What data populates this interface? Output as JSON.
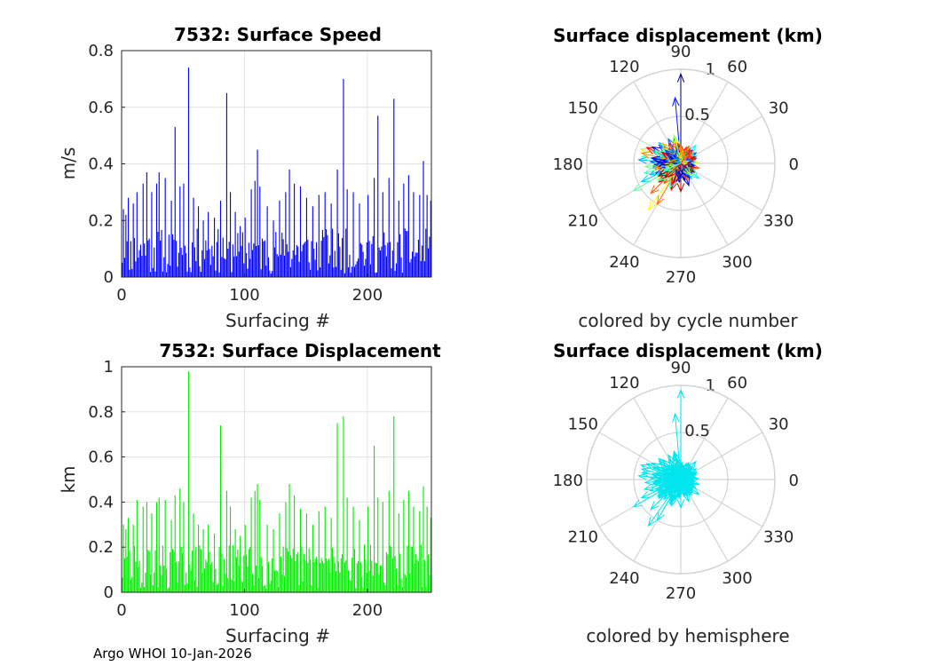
{
  "footer": "Argo WHOI 10-Jan-2026",
  "chart_data": [
    {
      "id": "speed",
      "type": "bar",
      "title": "7532: Surface Speed",
      "xlabel": "Surfacing #",
      "ylabel": "m/s",
      "xlim": [
        0,
        252
      ],
      "ylim": [
        0,
        0.8
      ],
      "xticks": [
        0,
        100,
        200
      ],
      "yticks": [
        0,
        0.2,
        0.4,
        0.6,
        0.8
      ],
      "xtick_labels": [
        "0",
        "100",
        "200"
      ],
      "ytick_labels": [
        "0",
        "0.2",
        "0.4",
        "0.6",
        "0.8"
      ],
      "color": "#0000ff",
      "grid": true,
      "n": 252,
      "peaks": [
        [
          1,
          0.24
        ],
        [
          3,
          0.22
        ],
        [
          5,
          0.28
        ],
        [
          9,
          0.26
        ],
        [
          12,
          0.3
        ],
        [
          17,
          0.33
        ],
        [
          20,
          0.37
        ],
        [
          24,
          0.3
        ],
        [
          28,
          0.33
        ],
        [
          30,
          0.37
        ],
        [
          35,
          0.35
        ],
        [
          40,
          0.27
        ],
        [
          43,
          0.53
        ],
        [
          47,
          0.32
        ],
        [
          50,
          0.33
        ],
        [
          54,
          0.74
        ],
        [
          58,
          0.28
        ],
        [
          62,
          0.25
        ],
        [
          66,
          0.2
        ],
        [
          70,
          0.23
        ],
        [
          75,
          0.21
        ],
        [
          80,
          0.27
        ],
        [
          85,
          0.65
        ],
        [
          88,
          0.3
        ],
        [
          92,
          0.23
        ],
        [
          96,
          0.18
        ],
        [
          100,
          0.21
        ],
        [
          105,
          0.31
        ],
        [
          108,
          0.34
        ],
        [
          110,
          0.45
        ],
        [
          112,
          0.32
        ],
        [
          118,
          0.25
        ],
        [
          123,
          0.2
        ],
        [
          128,
          0.27
        ],
        [
          133,
          0.3
        ],
        [
          136,
          0.38
        ],
        [
          140,
          0.33
        ],
        [
          145,
          0.32
        ],
        [
          150,
          0.28
        ],
        [
          155,
          0.25
        ],
        [
          160,
          0.29
        ],
        [
          165,
          0.3
        ],
        [
          170,
          0.26
        ],
        [
          175,
          0.38
        ],
        [
          180,
          0.7
        ],
        [
          183,
          0.31
        ],
        [
          188,
          0.3
        ],
        [
          193,
          0.26
        ],
        [
          200,
          0.29
        ],
        [
          205,
          0.35
        ],
        [
          208,
          0.57
        ],
        [
          212,
          0.3
        ],
        [
          217,
          0.35
        ],
        [
          221,
          0.63
        ],
        [
          225,
          0.27
        ],
        [
          229,
          0.33
        ],
        [
          233,
          0.36
        ],
        [
          237,
          0.3
        ],
        [
          242,
          0.29
        ],
        [
          245,
          0.41
        ],
        [
          248,
          0.29
        ],
        [
          251,
          0.27
        ]
      ]
    },
    {
      "id": "displacement",
      "type": "bar",
      "title": "7532: Surface Displacement",
      "xlabel": "Surfacing #",
      "ylabel": "km",
      "xlim": [
        0,
        252
      ],
      "ylim": [
        0,
        1
      ],
      "xticks": [
        0,
        100,
        200
      ],
      "yticks": [
        0,
        0.2,
        0.4,
        0.6,
        0.8,
        1
      ],
      "xtick_labels": [
        "0",
        "100",
        "200"
      ],
      "ytick_labels": [
        "0",
        "0.2",
        "0.4",
        "0.6",
        "0.8",
        "1"
      ],
      "color": "#00ee00",
      "grid": true,
      "n": 252,
      "peaks": [
        [
          1,
          0.3
        ],
        [
          3,
          0.28
        ],
        [
          5,
          0.33
        ],
        [
          9,
          0.3
        ],
        [
          12,
          0.41
        ],
        [
          17,
          0.38
        ],
        [
          20,
          0.4
        ],
        [
          24,
          0.35
        ],
        [
          28,
          0.4
        ],
        [
          30,
          0.42
        ],
        [
          35,
          0.41
        ],
        [
          40,
          0.32
        ],
        [
          43,
          0.43
        ],
        [
          47,
          0.46
        ],
        [
          50,
          0.4
        ],
        [
          54,
          0.98
        ],
        [
          58,
          0.35
        ],
        [
          62,
          0.3
        ],
        [
          66,
          0.28
        ],
        [
          70,
          0.3
        ],
        [
          75,
          0.26
        ],
        [
          80,
          0.74
        ],
        [
          85,
          0.45
        ],
        [
          88,
          0.38
        ],
        [
          92,
          0.28
        ],
        [
          96,
          0.25
        ],
        [
          100,
          0.3
        ],
        [
          105,
          0.42
        ],
        [
          108,
          0.45
        ],
        [
          110,
          0.48
        ],
        [
          112,
          0.41
        ],
        [
          118,
          0.3
        ],
        [
          123,
          0.28
        ],
        [
          128,
          0.35
        ],
        [
          133,
          0.4
        ],
        [
          136,
          0.48
        ],
        [
          140,
          0.43
        ],
        [
          145,
          0.37
        ],
        [
          150,
          0.35
        ],
        [
          155,
          0.3
        ],
        [
          160,
          0.36
        ],
        [
          165,
          0.38
        ],
        [
          170,
          0.33
        ],
        [
          175,
          0.75
        ],
        [
          180,
          0.78
        ],
        [
          183,
          0.42
        ],
        [
          188,
          0.38
        ],
        [
          193,
          0.32
        ],
        [
          200,
          0.38
        ],
        [
          205,
          0.65
        ],
        [
          208,
          0.42
        ],
        [
          212,
          0.4
        ],
        [
          217,
          0.45
        ],
        [
          221,
          0.78
        ],
        [
          225,
          0.35
        ],
        [
          229,
          0.41
        ],
        [
          233,
          0.45
        ],
        [
          237,
          0.38
        ],
        [
          242,
          0.36
        ],
        [
          245,
          0.47
        ],
        [
          248,
          0.38
        ],
        [
          251,
          0.33
        ]
      ]
    },
    {
      "id": "polar_cycle",
      "type": "scatter",
      "subtype": "polar-compass",
      "title": "Surface displacement (km)",
      "caption": "colored by cycle number",
      "rlim": [
        0,
        1
      ],
      "rticks": [
        0.5,
        1
      ],
      "rtick_labels": [
        "0.5",
        "1"
      ],
      "theta_ticks": [
        0,
        30,
        60,
        90,
        120,
        150,
        180,
        210,
        240,
        270,
        300,
        330
      ],
      "theta_labels": [
        "0",
        "30",
        "60",
        "90",
        "120",
        "150",
        "180",
        "210",
        "240",
        "270",
        "300",
        "330"
      ],
      "colormap": "jet",
      "n": 252,
      "vectors": [
        [
          90,
          0.95
        ],
        [
          95,
          0.7
        ],
        [
          175,
          0.45
        ],
        [
          170,
          0.42
        ],
        [
          160,
          0.45
        ],
        [
          165,
          0.43
        ],
        [
          155,
          0.4
        ],
        [
          185,
          0.3
        ],
        [
          190,
          0.25
        ],
        [
          205,
          0.46
        ],
        [
          210,
          0.58
        ],
        [
          235,
          0.6
        ],
        [
          240,
          0.5
        ],
        [
          250,
          0.3
        ],
        [
          265,
          0.2
        ],
        [
          285,
          0.18
        ],
        [
          300,
          0.15
        ],
        [
          315,
          0.18
        ],
        [
          330,
          0.12
        ],
        [
          345,
          0.2
        ],
        [
          10,
          0.15
        ],
        [
          20,
          0.15
        ],
        [
          35,
          0.2
        ],
        [
          50,
          0.25
        ],
        [
          60,
          0.12
        ],
        [
          75,
          0.1
        ],
        [
          110,
          0.18
        ],
        [
          130,
          0.2
        ],
        [
          140,
          0.3
        ],
        [
          200,
          0.35
        ],
        [
          220,
          0.25
        ],
        [
          255,
          0.22
        ],
        [
          275,
          0.12
        ],
        [
          120,
          0.25
        ],
        [
          100,
          0.2
        ],
        [
          150,
          0.35
        ],
        [
          180,
          0.2
        ],
        [
          195,
          0.4
        ],
        [
          215,
          0.3
        ],
        [
          230,
          0.2
        ],
        [
          245,
          0.25
        ],
        [
          260,
          0.15
        ],
        [
          290,
          0.1
        ],
        [
          305,
          0.2
        ],
        [
          340,
          0.15
        ],
        [
          5,
          0.1
        ],
        [
          45,
          0.15
        ],
        [
          65,
          0.2
        ],
        [
          80,
          0.15
        ],
        [
          135,
          0.12
        ],
        [
          170,
          0.3
        ],
        [
          185,
          0.38
        ],
        [
          200,
          0.22
        ],
        [
          225,
          0.45
        ],
        [
          270,
          0.3
        ],
        [
          290,
          0.25
        ],
        [
          310,
          0.1
        ],
        [
          320,
          0.25
        ],
        [
          350,
          0.12
        ],
        [
          25,
          0.1
        ]
      ]
    },
    {
      "id": "polar_hemisphere",
      "type": "scatter",
      "subtype": "polar-compass",
      "title": "Surface displacement (km)",
      "caption": "colored by hemisphere",
      "rlim": [
        0,
        1
      ],
      "rticks": [
        0.5,
        1
      ],
      "rtick_labels": [
        "0.5",
        "1"
      ],
      "theta_ticks": [
        0,
        30,
        60,
        90,
        120,
        150,
        180,
        210,
        240,
        270,
        300,
        330
      ],
      "theta_labels": [
        "0",
        "30",
        "60",
        "90",
        "120",
        "150",
        "180",
        "210",
        "240",
        "270",
        "300",
        "330"
      ],
      "color": "#00e5ee",
      "n": 252,
      "vectors": [
        [
          90,
          0.95
        ],
        [
          95,
          0.7
        ],
        [
          175,
          0.45
        ],
        [
          170,
          0.42
        ],
        [
          160,
          0.45
        ],
        [
          165,
          0.43
        ],
        [
          155,
          0.4
        ],
        [
          185,
          0.3
        ],
        [
          190,
          0.25
        ],
        [
          205,
          0.46
        ],
        [
          210,
          0.58
        ],
        [
          235,
          0.6
        ],
        [
          240,
          0.5
        ],
        [
          250,
          0.3
        ],
        [
          265,
          0.2
        ],
        [
          285,
          0.18
        ],
        [
          300,
          0.15
        ],
        [
          315,
          0.18
        ],
        [
          330,
          0.12
        ],
        [
          345,
          0.2
        ],
        [
          10,
          0.15
        ],
        [
          20,
          0.15
        ],
        [
          35,
          0.2
        ],
        [
          50,
          0.25
        ],
        [
          60,
          0.12
        ],
        [
          75,
          0.1
        ],
        [
          110,
          0.18
        ],
        [
          130,
          0.2
        ],
        [
          140,
          0.3
        ],
        [
          200,
          0.35
        ],
        [
          220,
          0.25
        ],
        [
          255,
          0.22
        ],
        [
          275,
          0.12
        ],
        [
          120,
          0.25
        ],
        [
          100,
          0.2
        ],
        [
          150,
          0.35
        ],
        [
          180,
          0.2
        ],
        [
          195,
          0.4
        ],
        [
          215,
          0.3
        ],
        [
          230,
          0.2
        ],
        [
          245,
          0.25
        ],
        [
          260,
          0.15
        ],
        [
          290,
          0.1
        ],
        [
          305,
          0.2
        ],
        [
          340,
          0.15
        ],
        [
          5,
          0.1
        ],
        [
          45,
          0.15
        ],
        [
          65,
          0.2
        ],
        [
          80,
          0.15
        ],
        [
          135,
          0.12
        ],
        [
          170,
          0.3
        ],
        [
          185,
          0.38
        ],
        [
          200,
          0.22
        ],
        [
          225,
          0.45
        ],
        [
          270,
          0.3
        ],
        [
          290,
          0.25
        ],
        [
          310,
          0.1
        ],
        [
          320,
          0.25
        ],
        [
          350,
          0.12
        ],
        [
          25,
          0.1
        ]
      ]
    }
  ]
}
